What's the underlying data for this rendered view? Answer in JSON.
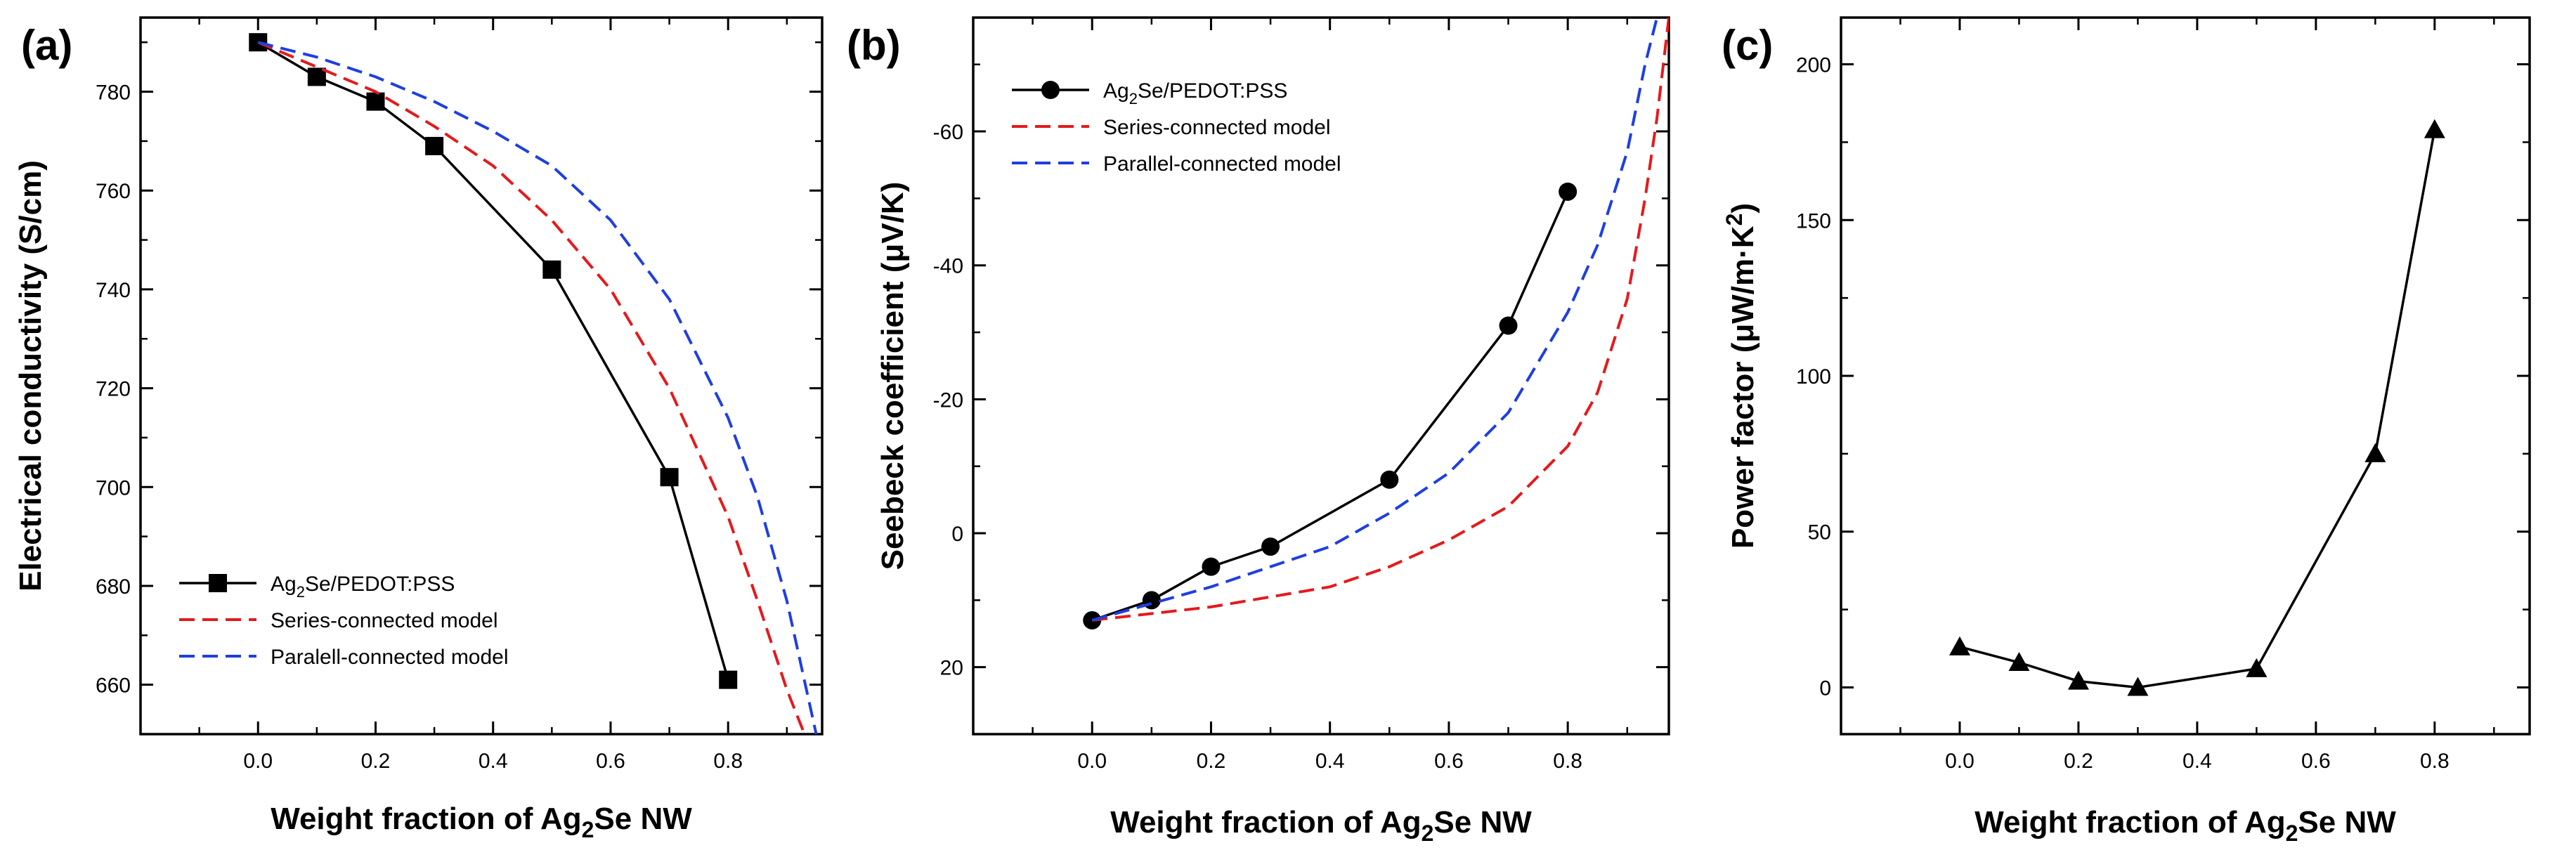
{
  "chart_data": [
    {
      "type": "line",
      "panel": "(a)",
      "xlabel_pre": "Weight fraction of Ag",
      "xlabel_sub": "2",
      "xlabel_post": "Se NW",
      "ylabel": "Electrical conductivity (S/cm)",
      "xlim": [
        -0.2,
        0.96
      ],
      "ylim": [
        650,
        795
      ],
      "y_inverted": false,
      "xticks": [
        0.0,
        0.2,
        0.4,
        0.6,
        0.8
      ],
      "xtick_labels": [
        "0.0",
        "0.2",
        "0.4",
        "0.6",
        "0.8"
      ],
      "yticks": [
        660,
        680,
        700,
        720,
        740,
        760,
        780
      ],
      "ytick_labels": [
        "660",
        "680",
        "700",
        "720",
        "740",
        "760",
        "780"
      ],
      "legend_position": "bottom-left",
      "series": [
        {
          "name_pre": "Ag",
          "name_sub": "2",
          "name_post": "Se/PEDOT:PSS",
          "kind": "markers-line",
          "marker": "square",
          "color": "#000000",
          "x": [
            0.0,
            0.1,
            0.2,
            0.3,
            0.5,
            0.7,
            0.8
          ],
          "y": [
            790,
            783,
            778,
            769,
            744,
            702,
            661
          ]
        },
        {
          "name_pre": "Series-connected model",
          "name_sub": "",
          "name_post": "",
          "kind": "dashed",
          "color": "#e41a1c",
          "x": [
            0.0,
            0.1,
            0.2,
            0.3,
            0.4,
            0.5,
            0.6,
            0.7,
            0.8,
            0.85,
            0.9,
            0.93
          ],
          "y": [
            790,
            785,
            780,
            773,
            765,
            754,
            740,
            720,
            694,
            677,
            659,
            650
          ]
        },
        {
          "name_pre": "Paralell-connected model",
          "name_sub": "",
          "name_post": "",
          "kind": "dashed",
          "color": "#1f3fe0",
          "x": [
            0.0,
            0.1,
            0.2,
            0.3,
            0.4,
            0.5,
            0.6,
            0.7,
            0.8,
            0.85,
            0.9,
            0.95
          ],
          "y": [
            790,
            787,
            783,
            778,
            772,
            765,
            754,
            738,
            714,
            698,
            677,
            650
          ]
        }
      ]
    },
    {
      "type": "line",
      "panel": "(b)",
      "xlabel_pre": "Weight fraction of Ag",
      "xlabel_sub": "2",
      "xlabel_post": "Se NW",
      "ylabel": "Seebeck coefficient (μV/K)",
      "xlim": [
        -0.2,
        0.97
      ],
      "ylim": [
        30,
        -77
      ],
      "y_inverted": true,
      "xticks": [
        0.0,
        0.2,
        0.4,
        0.6,
        0.8
      ],
      "xtick_labels": [
        "0.0",
        "0.2",
        "0.4",
        "0.6",
        "0.8"
      ],
      "yticks": [
        20,
        0,
        -20,
        -40,
        -60
      ],
      "ytick_labels": [
        "20",
        "0",
        "-20",
        "-40",
        "-60"
      ],
      "legend_position": "top-left",
      "series": [
        {
          "name_pre": "Ag",
          "name_sub": "2",
          "name_post": "Se/PEDOT:PSS",
          "kind": "markers-line",
          "marker": "circle",
          "color": "#000000",
          "x": [
            0.0,
            0.1,
            0.2,
            0.3,
            0.5,
            0.7,
            0.8
          ],
          "y": [
            13,
            10,
            5,
            2,
            -8,
            -31,
            -51
          ]
        },
        {
          "name_pre": "Series-connected model",
          "name_sub": "",
          "name_post": "",
          "kind": "dashed",
          "color": "#e41a1c",
          "x": [
            0.0,
            0.2,
            0.4,
            0.5,
            0.6,
            0.7,
            0.8,
            0.85,
            0.9,
            0.93,
            0.95,
            0.97
          ],
          "y": [
            13,
            11,
            8,
            5,
            1,
            -4,
            -13,
            -21,
            -35,
            -50,
            -62,
            -77
          ]
        },
        {
          "name_pre": "Parallel-connected model",
          "name_sub": "",
          "name_post": "",
          "kind": "dashed",
          "color": "#1f3fe0",
          "x": [
            0.0,
            0.2,
            0.4,
            0.5,
            0.6,
            0.7,
            0.8,
            0.85,
            0.9,
            0.93,
            0.95
          ],
          "y": [
            13,
            8,
            2,
            -3,
            -9,
            -18,
            -33,
            -43,
            -57,
            -70,
            -77
          ]
        }
      ]
    },
    {
      "type": "line",
      "panel": "(c)",
      "xlabel_pre": "Weight fraction of Ag",
      "xlabel_sub": "2",
      "xlabel_post": "Se NW",
      "ylabel_pre": "Power factor (μW/m·K",
      "ylabel_sup": "2",
      "ylabel_post": ")",
      "xlim": [
        -0.2,
        0.96
      ],
      "ylim": [
        -15,
        215
      ],
      "y_inverted": false,
      "xticks": [
        0.0,
        0.2,
        0.4,
        0.6,
        0.8
      ],
      "xtick_labels": [
        "0.0",
        "0.2",
        "0.4",
        "0.6",
        "0.8"
      ],
      "yticks": [
        0,
        50,
        100,
        150,
        200
      ],
      "ytick_labels": [
        "0",
        "50",
        "100",
        "150",
        "200"
      ],
      "series": [
        {
          "name_pre": "Power factor",
          "name_sub": "",
          "name_post": "",
          "kind": "markers-line",
          "marker": "triangle",
          "color": "#000000",
          "x": [
            0.0,
            0.1,
            0.2,
            0.3,
            0.5,
            0.7,
            0.8
          ],
          "y": [
            13,
            8,
            2,
            0,
            6,
            75,
            179
          ]
        }
      ]
    }
  ]
}
